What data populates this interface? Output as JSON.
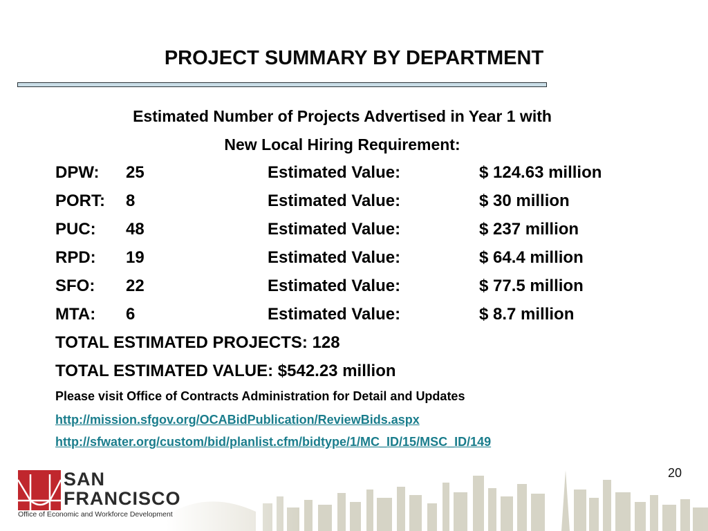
{
  "title": "PROJECT SUMMARY BY DEPARTMENT",
  "subheading": {
    "line1": "Estimated Number of Projects Advertised in Year 1 with",
    "line2": "New Local Hiring Requirement:"
  },
  "departments": [
    {
      "dept": "DPW:",
      "count": "25",
      "label": "Estimated Value:",
      "value": "$ 124.63 million"
    },
    {
      "dept": "PORT:",
      "count": "8",
      "label": "Estimated Value:",
      "value": "$ 30 million"
    },
    {
      "dept": "PUC:",
      "count": "48",
      "label": "Estimated Value:",
      "value": "$ 237 million"
    },
    {
      "dept": "RPD:",
      "count": "19",
      "label": "Estimated Value:",
      "value": "$ 64.4 million"
    },
    {
      "dept": "SFO:",
      "count": "22",
      "label": "Estimated Value:",
      "value": "$ 77.5 million"
    },
    {
      "dept": "MTA:",
      "count": "6",
      "label": "Estimated Value:",
      "value": "$  8.7 million"
    }
  ],
  "totals": {
    "projects": "TOTAL ESTIMATED PROJECTS:  128",
    "value": "TOTAL ESTIMATED VALUE: $542.23 million"
  },
  "notice": "Please visit Office of Contracts Administration for Detail and Updates",
  "links": [
    "http://mission.sfgov.org/OCABidPublication/ReviewBids.aspx",
    "http://sfwater.org/custom/bid/planlist.cfm/bidtype/1/MC_ID/15/MSC_ID/149"
  ],
  "page_number": "20",
  "logo": {
    "line1": "SAN",
    "line2": "FRANCISCO",
    "subtitle": "Office of Economic and Workforce Development"
  },
  "colors": {
    "link": "#1a7d8c",
    "logo_red": "#c0272d",
    "title_bar": "#c9dde6"
  }
}
